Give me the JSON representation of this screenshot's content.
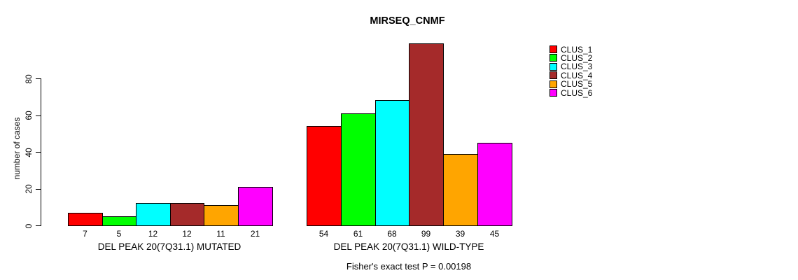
{
  "chart_data": {
    "type": "bar",
    "title": "MIRSEQ_CNMF",
    "ylabel": "number of cases",
    "yticks": [
      0,
      20,
      40,
      60,
      80
    ],
    "ylim": [
      0,
      99
    ],
    "grid": false,
    "legend_position": "top-right",
    "categories": [
      "DEL PEAK 20(7Q31.1) MUTATED",
      "DEL PEAK 20(7Q31.1) WILD-TYPE"
    ],
    "series": [
      {
        "name": "CLUS_1",
        "color": "#FF0000",
        "values": [
          7,
          54
        ]
      },
      {
        "name": "CLUS_2",
        "color": "#00FF00",
        "values": [
          5,
          61
        ]
      },
      {
        "name": "CLUS_3",
        "color": "#00FFFF",
        "values": [
          12,
          68
        ]
      },
      {
        "name": "CLUS_4",
        "color": "#A52A2A",
        "values": [
          12,
          99
        ]
      },
      {
        "name": "CLUS_5",
        "color": "#FFA500",
        "values": [
          11,
          39
        ]
      },
      {
        "name": "CLUS_6",
        "color": "#FF00FF",
        "values": [
          21,
          45
        ]
      }
    ],
    "bar_value_labels": [
      7,
      5,
      12,
      12,
      11,
      21,
      54,
      61,
      68,
      99,
      39,
      45
    ],
    "annotation": "Fisher's exact test P = 0.00198"
  }
}
